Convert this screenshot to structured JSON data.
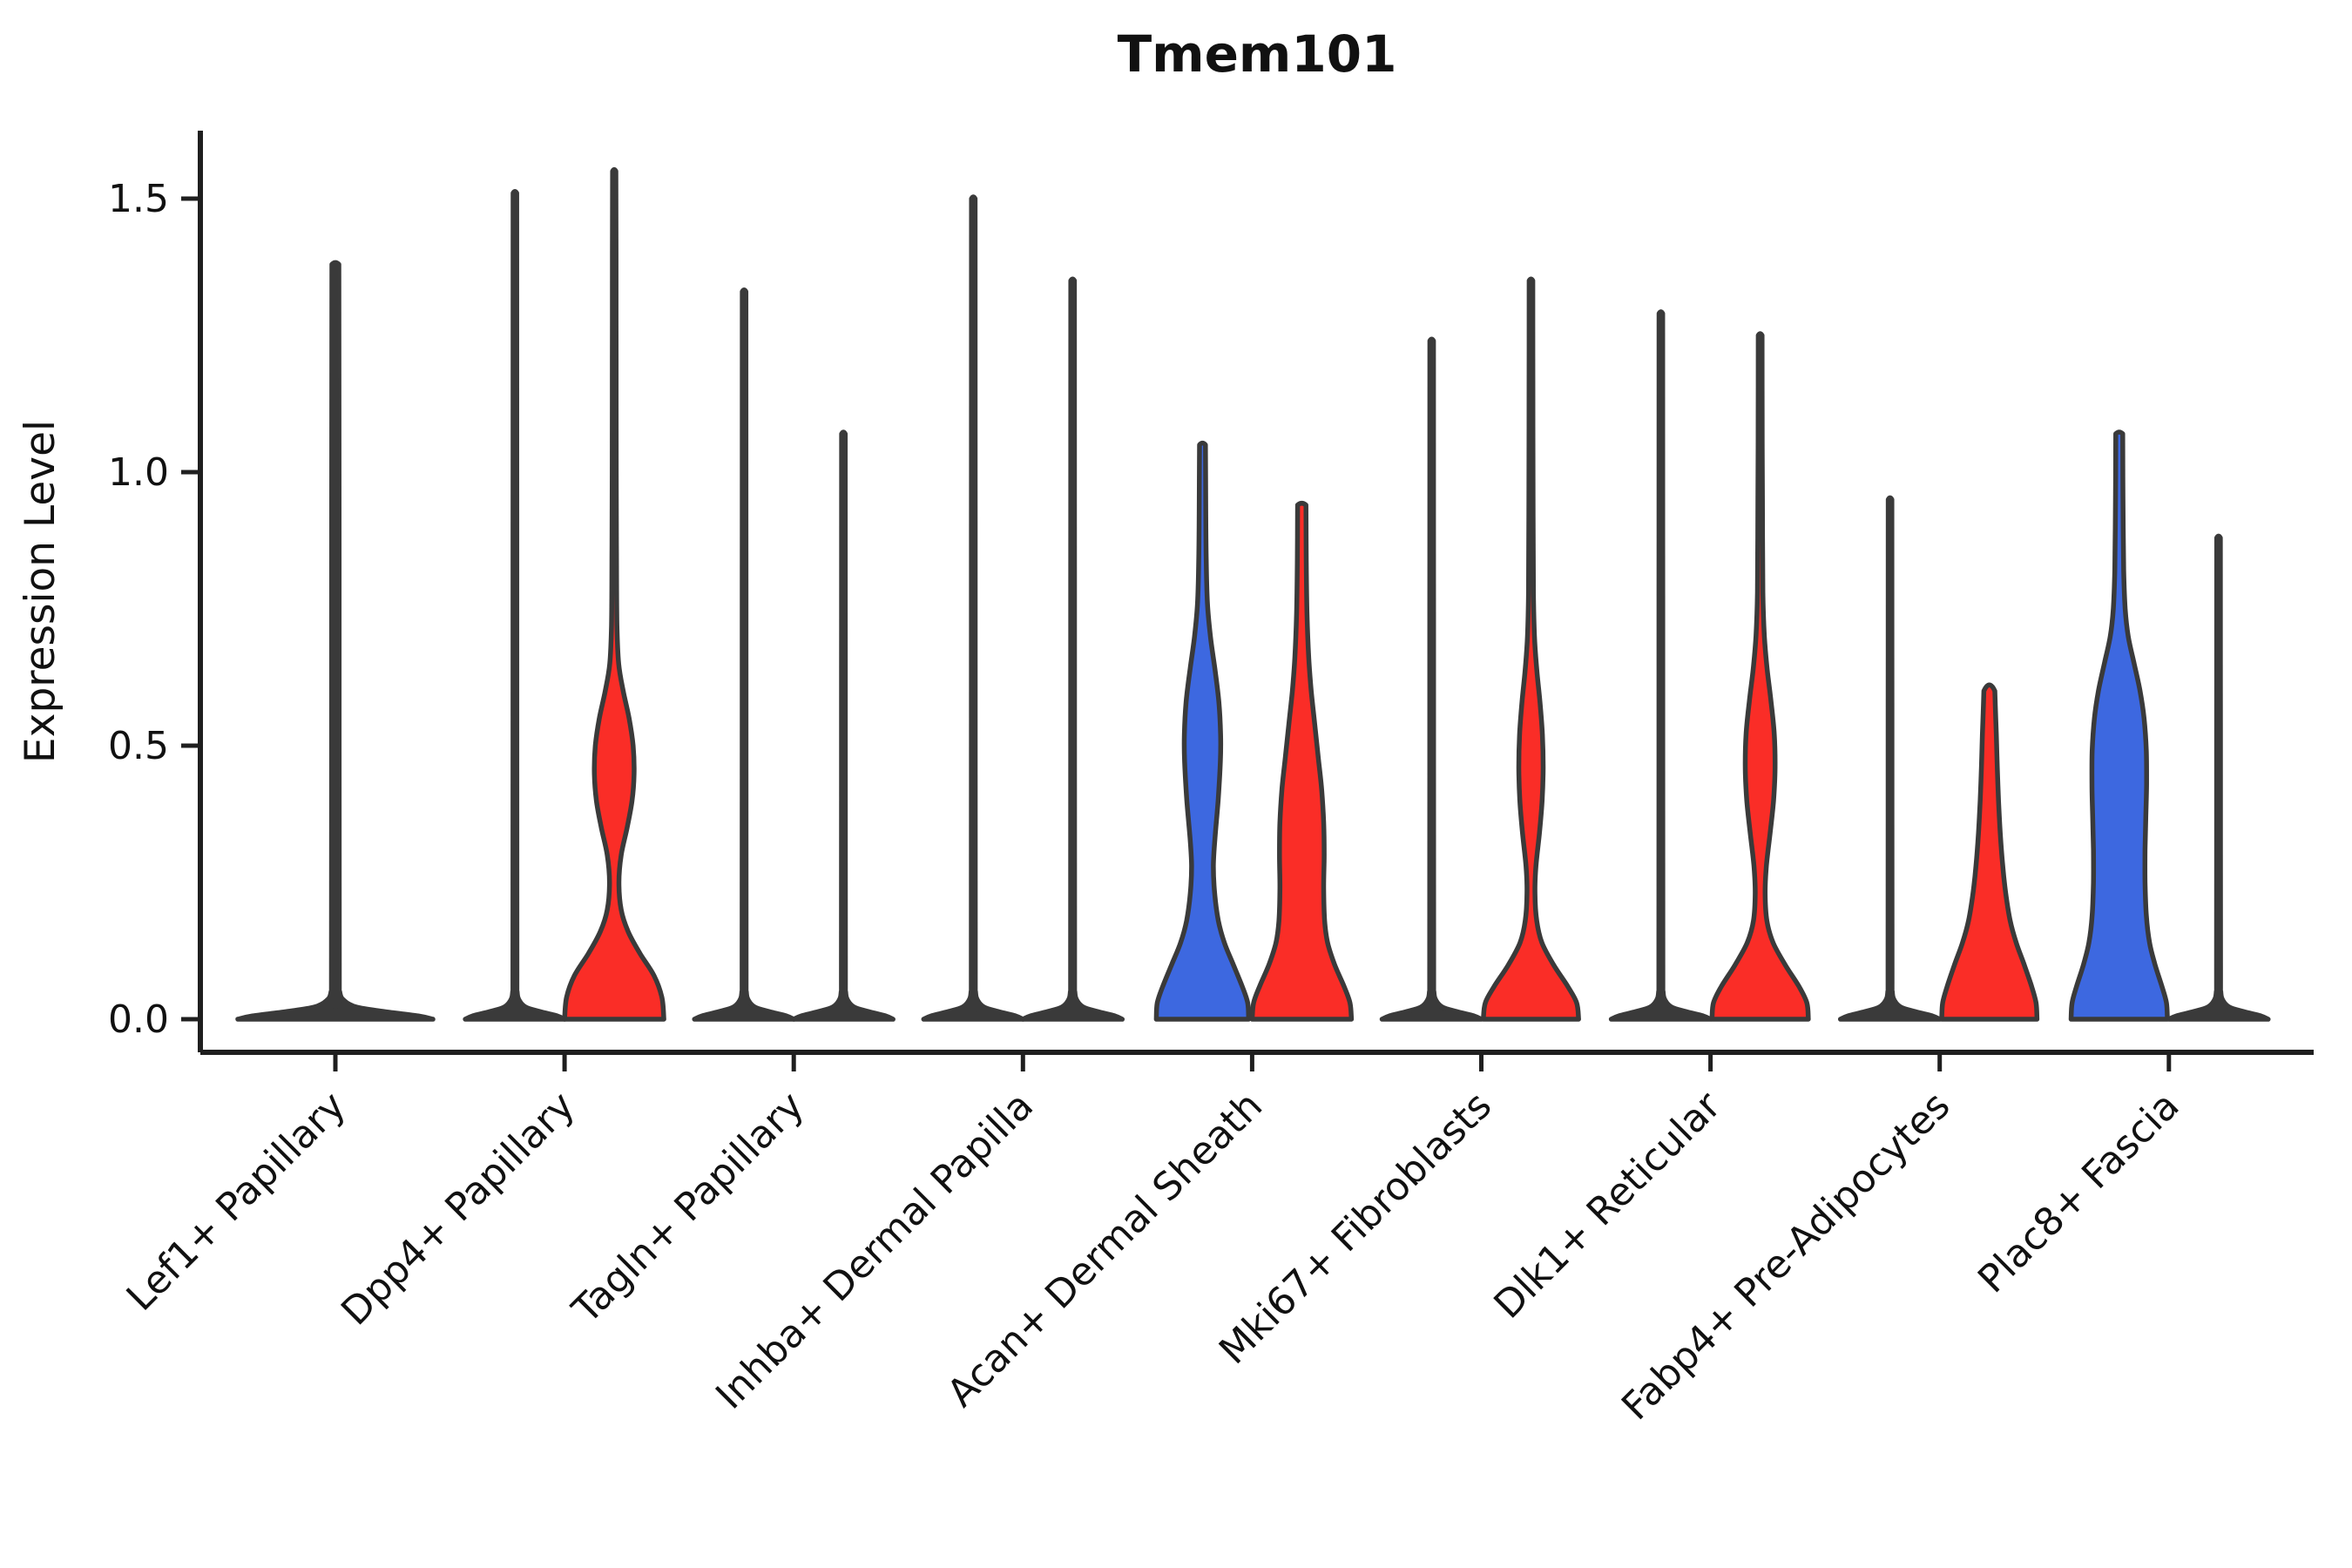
{
  "title": "Tmem101",
  "axes": {
    "y_label": "Expression Level",
    "y_tick_labels": [
      "0.0",
      "0.5",
      "1.0",
      "1.5"
    ]
  },
  "colors": {
    "red": "#FA2D27",
    "blue": "#3D68E0",
    "edge": "#3A3A3A",
    "axis": "#1F1F1F"
  },
  "chart_data": {
    "type": "violin",
    "title": "Tmem101",
    "ylabel": "Expression Level",
    "xlabel": "",
    "ylim": [
      0,
      1.55
    ],
    "yticks": [
      0,
      0.5,
      1.0,
      1.5
    ],
    "y_tick_labels": [
      "0.0",
      "0.5",
      "1.0",
      "1.5"
    ],
    "grid": false,
    "legend": "none",
    "categories": [
      "Lef1+ Papillary",
      "Dpp4+ Papillary",
      "Tagln+ Papillary",
      "Inhba+ Dermal Papilla",
      "Acan+ Dermal Sheath",
      "Mki67+ Fibroblasts",
      "Dlk1+ Reticular",
      "Fabp4+ Pre-Adipocytes",
      "Plac8+ Fascia"
    ],
    "violins": [
      [
        {
          "pos": "center",
          "shape": "spike",
          "max": 1.38
        }
      ],
      [
        {
          "pos": "left",
          "shape": "spike",
          "max": 1.51
        },
        {
          "pos": "right",
          "shape": "density",
          "fill": "red",
          "max": 1.55,
          "profile": [
            [
              0,
              1.0
            ],
            [
              0.04,
              0.96
            ],
            [
              0.08,
              0.8
            ],
            [
              0.12,
              0.52
            ],
            [
              0.16,
              0.28
            ],
            [
              0.2,
              0.14
            ],
            [
              0.25,
              0.095
            ],
            [
              0.3,
              0.14
            ],
            [
              0.35,
              0.26
            ],
            [
              0.4,
              0.36
            ],
            [
              0.45,
              0.4
            ],
            [
              0.5,
              0.38
            ],
            [
              0.55,
              0.3
            ],
            [
              0.6,
              0.18
            ],
            [
              0.65,
              0.09
            ],
            [
              0.72,
              0.055
            ],
            [
              0.85,
              0.045
            ],
            [
              1.0,
              0.04
            ],
            [
              1.2,
              0.038
            ],
            [
              1.4,
              0.036
            ],
            [
              1.55,
              0.034
            ]
          ]
        }
      ],
      [
        {
          "pos": "left",
          "shape": "spike",
          "max": 1.33
        },
        {
          "pos": "right",
          "shape": "spike",
          "max": 1.07
        }
      ],
      [
        {
          "pos": "left",
          "shape": "spike",
          "max": 1.5
        },
        {
          "pos": "right",
          "shape": "spike",
          "max": 1.35
        }
      ],
      [
        {
          "pos": "left",
          "shape": "density",
          "fill": "blue",
          "max": 1.05,
          "profile": [
            [
              0,
              0.93
            ],
            [
              0.03,
              0.91
            ],
            [
              0.06,
              0.8
            ],
            [
              0.1,
              0.62
            ],
            [
              0.14,
              0.44
            ],
            [
              0.18,
              0.32
            ],
            [
              0.23,
              0.245
            ],
            [
              0.28,
              0.22
            ],
            [
              0.33,
              0.25
            ],
            [
              0.4,
              0.315
            ],
            [
              0.47,
              0.36
            ],
            [
              0.52,
              0.365
            ],
            [
              0.58,
              0.33
            ],
            [
              0.64,
              0.25
            ],
            [
              0.7,
              0.16
            ],
            [
              0.76,
              0.1
            ],
            [
              0.84,
              0.075
            ],
            [
              0.95,
              0.065
            ],
            [
              1.05,
              0.06
            ]
          ]
        },
        {
          "pos": "right",
          "shape": "density",
          "fill": "red",
          "max": 0.94,
          "profile": [
            [
              0,
              1.0
            ],
            [
              0.03,
              0.97
            ],
            [
              0.06,
              0.85
            ],
            [
              0.1,
              0.66
            ],
            [
              0.14,
              0.52
            ],
            [
              0.18,
              0.46
            ],
            [
              0.24,
              0.44
            ],
            [
              0.3,
              0.45
            ],
            [
              0.36,
              0.44
            ],
            [
              0.42,
              0.4
            ],
            [
              0.48,
              0.33
            ],
            [
              0.54,
              0.26
            ],
            [
              0.6,
              0.19
            ],
            [
              0.66,
              0.14
            ],
            [
              0.74,
              0.105
            ],
            [
              0.84,
              0.09
            ],
            [
              0.94,
              0.085
            ]
          ]
        }
      ],
      [
        {
          "pos": "left",
          "shape": "spike",
          "max": 1.24
        },
        {
          "pos": "right",
          "shape": "density",
          "fill": "red",
          "max": 1.35,
          "profile": [
            [
              0,
              0.96
            ],
            [
              0.03,
              0.92
            ],
            [
              0.06,
              0.74
            ],
            [
              0.1,
              0.45
            ],
            [
              0.14,
              0.22
            ],
            [
              0.18,
              0.115
            ],
            [
              0.23,
              0.08
            ],
            [
              0.28,
              0.1
            ],
            [
              0.34,
              0.17
            ],
            [
              0.4,
              0.225
            ],
            [
              0.46,
              0.245
            ],
            [
              0.52,
              0.23
            ],
            [
              0.58,
              0.18
            ],
            [
              0.64,
              0.115
            ],
            [
              0.7,
              0.07
            ],
            [
              0.78,
              0.05
            ],
            [
              0.95,
              0.042
            ],
            [
              1.15,
              0.038
            ],
            [
              1.35,
              0.036
            ]
          ]
        }
      ],
      [
        {
          "pos": "left",
          "shape": "spike",
          "max": 1.29
        },
        {
          "pos": "right",
          "shape": "density",
          "fill": "red",
          "max": 1.25,
          "profile": [
            [
              0,
              0.97
            ],
            [
              0.03,
              0.94
            ],
            [
              0.06,
              0.78
            ],
            [
              0.1,
              0.5
            ],
            [
              0.14,
              0.26
            ],
            [
              0.18,
              0.135
            ],
            [
              0.23,
              0.1
            ],
            [
              0.28,
              0.125
            ],
            [
              0.34,
              0.2
            ],
            [
              0.4,
              0.27
            ],
            [
              0.46,
              0.3
            ],
            [
              0.52,
              0.285
            ],
            [
              0.58,
              0.22
            ],
            [
              0.64,
              0.14
            ],
            [
              0.7,
              0.085
            ],
            [
              0.78,
              0.055
            ],
            [
              0.95,
              0.045
            ],
            [
              1.1,
              0.04
            ],
            [
              1.25,
              0.038
            ]
          ]
        }
      ],
      [
        {
          "pos": "left",
          "shape": "spike",
          "max": 0.95
        },
        {
          "pos": "right",
          "shape": "density",
          "fill": "red",
          "max": 0.6,
          "blunt": true,
          "profile": [
            [
              0,
              0.96
            ],
            [
              0.03,
              0.94
            ],
            [
              0.06,
              0.85
            ],
            [
              0.1,
              0.7
            ],
            [
              0.14,
              0.54
            ],
            [
              0.18,
              0.42
            ],
            [
              0.23,
              0.33
            ],
            [
              0.28,
              0.27
            ],
            [
              0.34,
              0.22
            ],
            [
              0.4,
              0.185
            ],
            [
              0.46,
              0.16
            ],
            [
              0.52,
              0.14
            ],
            [
              0.56,
              0.125
            ],
            [
              0.6,
              0.11
            ]
          ]
        }
      ],
      [
        {
          "pos": "left",
          "shape": "density",
          "fill": "blue",
          "max": 1.07,
          "profile": [
            [
              0,
              0.97
            ],
            [
              0.03,
              0.95
            ],
            [
              0.06,
              0.86
            ],
            [
              0.1,
              0.72
            ],
            [
              0.14,
              0.61
            ],
            [
              0.19,
              0.545
            ],
            [
              0.25,
              0.52
            ],
            [
              0.31,
              0.52
            ],
            [
              0.37,
              0.535
            ],
            [
              0.43,
              0.55
            ],
            [
              0.49,
              0.545
            ],
            [
              0.55,
              0.5
            ],
            [
              0.6,
              0.42
            ],
            [
              0.65,
              0.3
            ],
            [
              0.7,
              0.18
            ],
            [
              0.75,
              0.12
            ],
            [
              0.82,
              0.09
            ],
            [
              0.95,
              0.075
            ],
            [
              1.07,
              0.07
            ]
          ]
        },
        {
          "pos": "right",
          "shape": "spike",
          "max": 0.88
        }
      ]
    ]
  }
}
